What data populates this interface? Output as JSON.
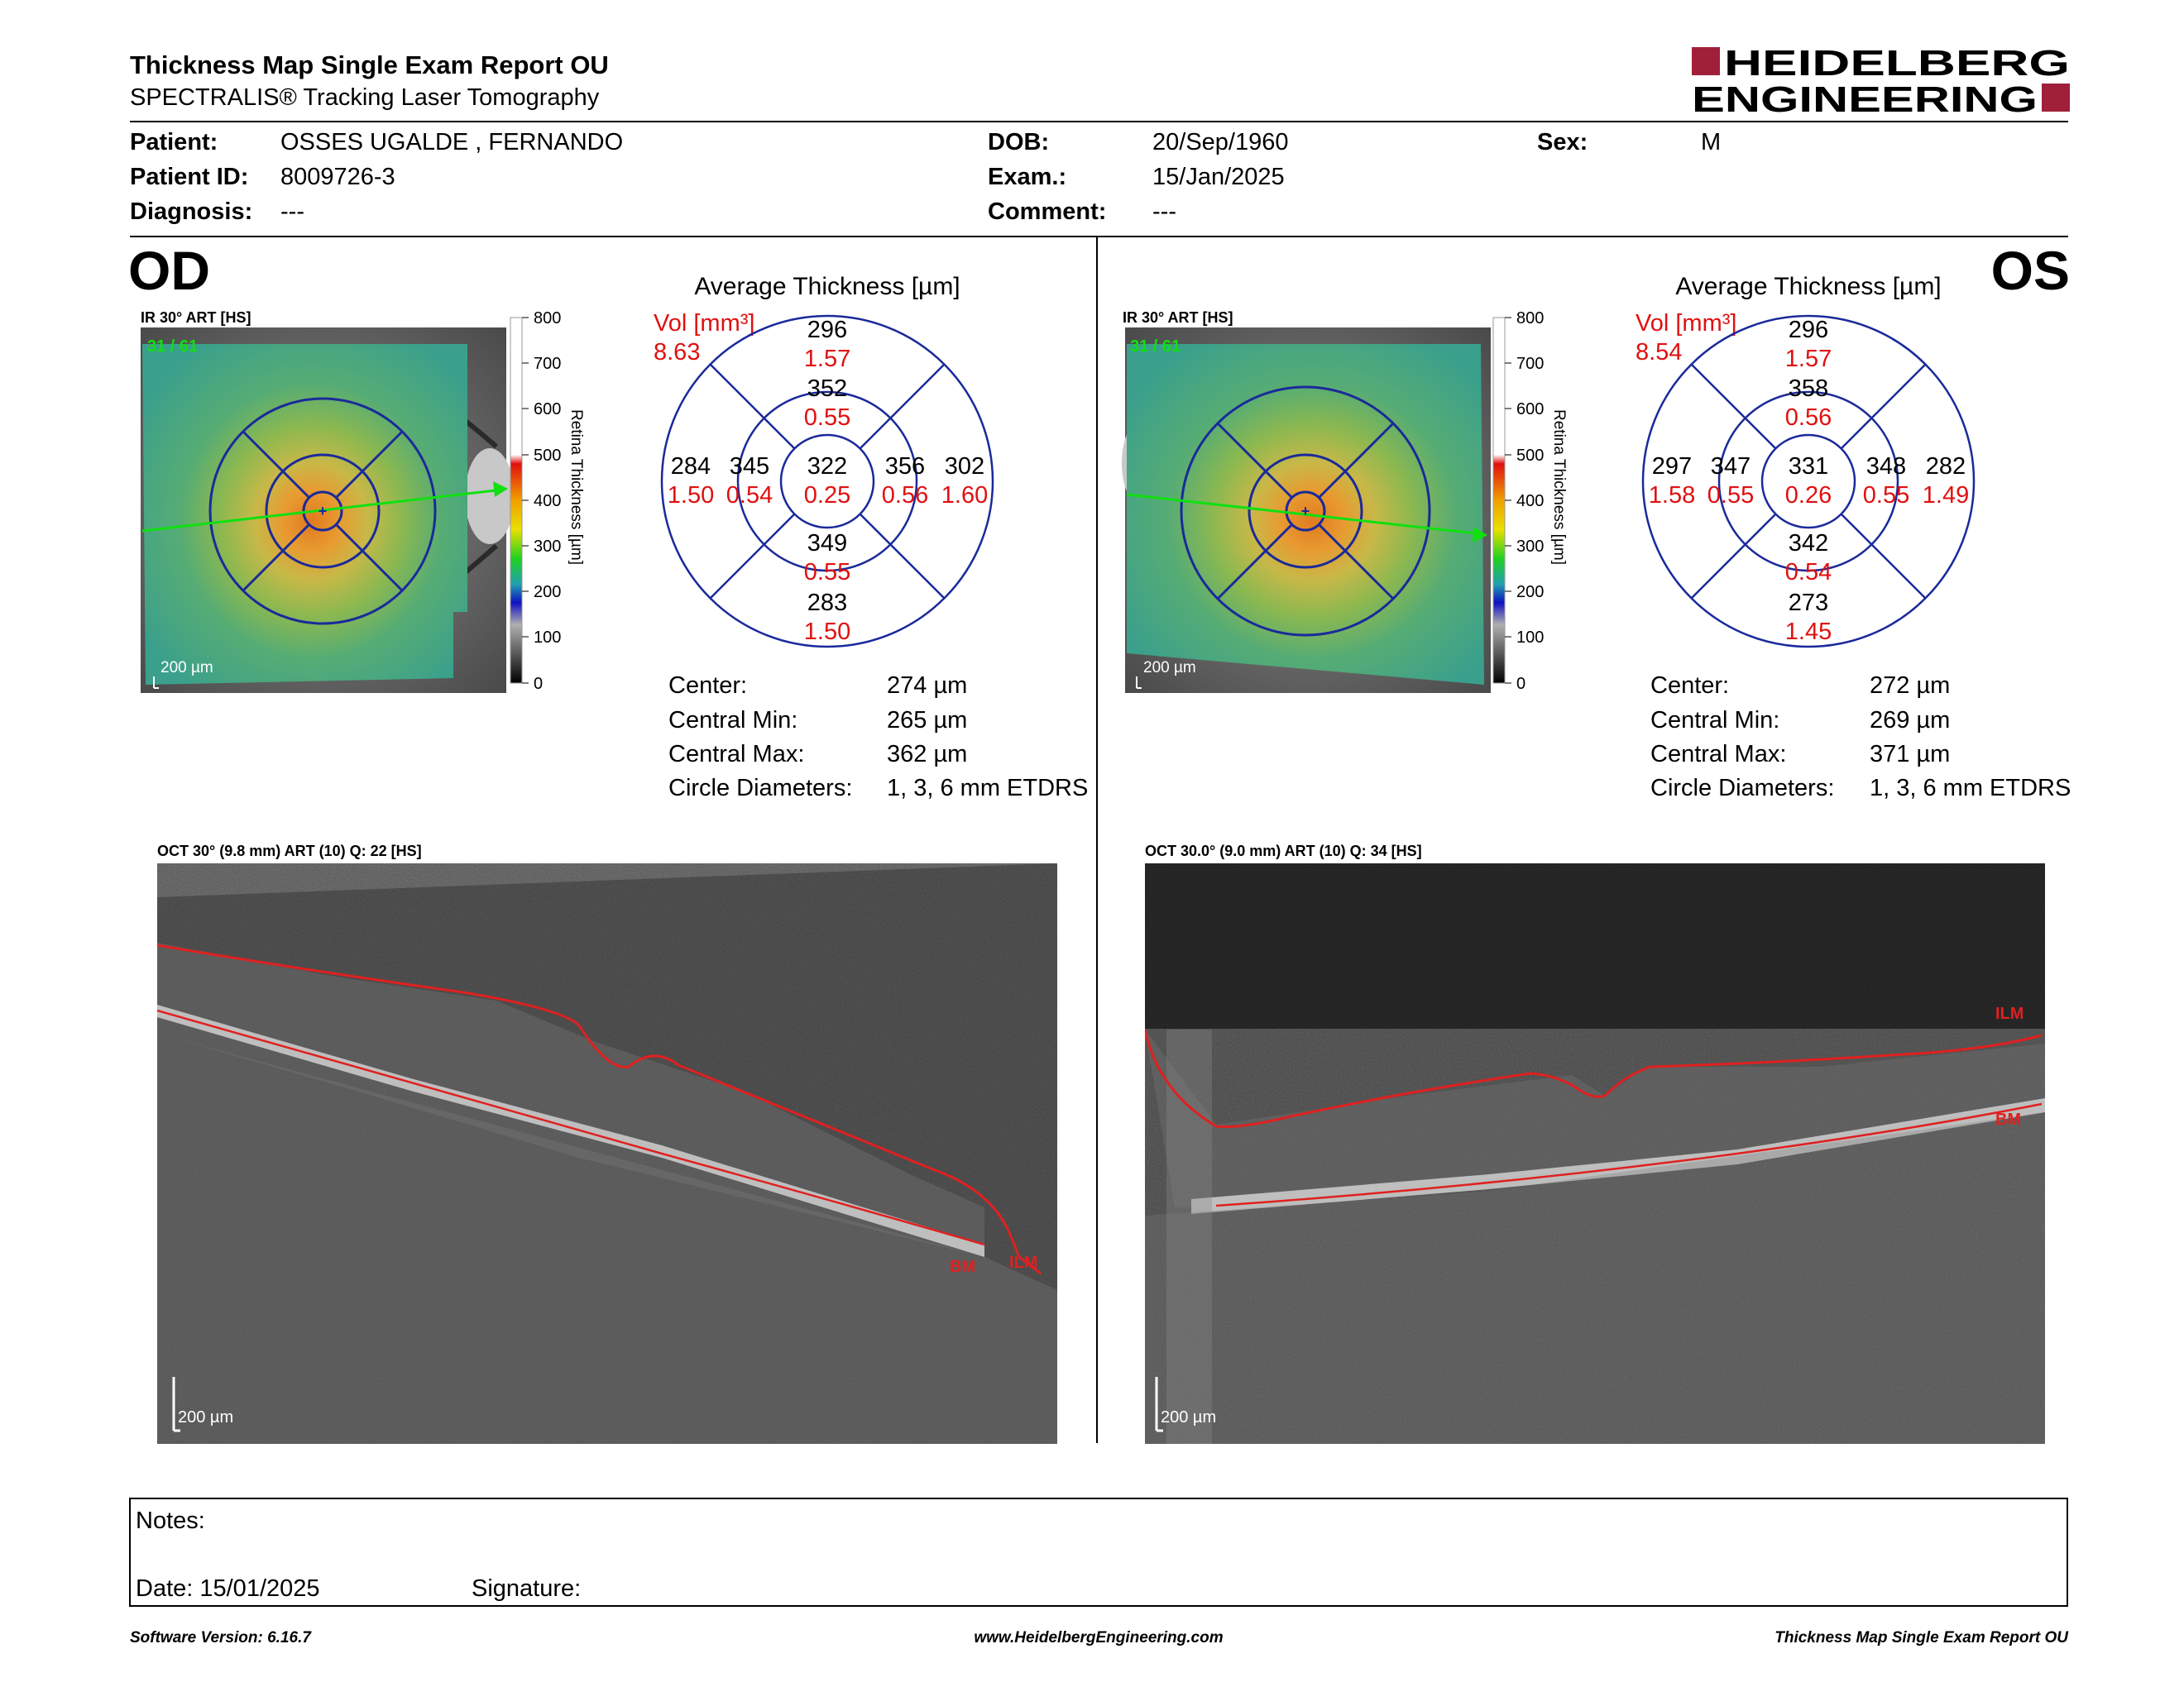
{
  "header": {
    "title": "Thickness Map Single Exam Report OU",
    "subtitle": "SPECTRALIS® Tracking Laser Tomography",
    "logo_line1": "HEIDELBERG",
    "logo_line2": "ENGINEERING"
  },
  "patient": {
    "patient_label": "Patient:",
    "patient_value": "OSSES UGALDE , FERNANDO",
    "id_label": "Patient ID:",
    "id_value": "8009726-3",
    "diagnosis_label": "Diagnosis:",
    "diagnosis_value": "---",
    "dob_label": "DOB:",
    "dob_value": "20/Sep/1960",
    "exam_label": "Exam.:",
    "exam_value": "15/Jan/2025",
    "comment_label": "Comment:",
    "comment_value": "---",
    "sex_label": "Sex:",
    "sex_value": "M"
  },
  "colorbar": {
    "ticks": [
      "800",
      "700",
      "600",
      "500",
      "400",
      "300",
      "200",
      "100",
      "0"
    ],
    "axis_label": "Retina Thickness [µm]"
  },
  "od": {
    "eye": "OD",
    "fundus_label": "IR 30° ART [HS]",
    "slice": "31 / 61",
    "scale": "200 µm",
    "avg_title": "Average Thickness [µm]",
    "vol_label": "Vol [mm³]",
    "vol_value": "8.63",
    "grid": {
      "outer_sup_t": "296",
      "outer_sup_v": "1.57",
      "inner_sup_t": "352",
      "inner_sup_v": "0.55",
      "outer_left_t": "284",
      "outer_left_v": "1.50",
      "inner_left_t": "345",
      "inner_left_v": "0.54",
      "center_t": "322",
      "center_v": "0.25",
      "inner_right_t": "356",
      "inner_right_v": "0.56",
      "outer_right_t": "302",
      "outer_right_v": "1.60",
      "inner_inf_t": "349",
      "inner_inf_v": "0.55",
      "outer_inf_t": "283",
      "outer_inf_v": "1.50"
    },
    "stats": {
      "center_label": "Center:",
      "center_value": "274 µm",
      "min_label": "Central Min:",
      "min_value": "265 µm",
      "max_label": "Central Max:",
      "max_value": "362 µm",
      "diam_label": "Circle Diameters:",
      "diam_value": "1, 3, 6 mm ETDRS"
    },
    "oct_label": "OCT 30° (9.8 mm) ART (10) Q: 22 [HS]",
    "oct_scale": "200 µm",
    "ilm": "ILM",
    "bm": "BM"
  },
  "os": {
    "eye": "OS",
    "fundus_label": "IR 30° ART [HS]",
    "slice": "31 / 61",
    "scale": "200 µm",
    "avg_title": "Average Thickness [µm]",
    "vol_label": "Vol [mm³]",
    "vol_value": "8.54",
    "grid": {
      "outer_sup_t": "296",
      "outer_sup_v": "1.57",
      "inner_sup_t": "358",
      "inner_sup_v": "0.56",
      "outer_left_t": "297",
      "outer_left_v": "1.58",
      "inner_left_t": "347",
      "inner_left_v": "0.55",
      "center_t": "331",
      "center_v": "0.26",
      "inner_right_t": "348",
      "inner_right_v": "0.55",
      "outer_right_t": "282",
      "outer_right_v": "1.49",
      "inner_inf_t": "342",
      "inner_inf_v": "0.54",
      "outer_inf_t": "273",
      "outer_inf_v": "1.45"
    },
    "stats": {
      "center_label": "Center:",
      "center_value": "272 µm",
      "min_label": "Central Min:",
      "min_value": "269 µm",
      "max_label": "Central Max:",
      "max_value": "371 µm",
      "diam_label": "Circle Diameters:",
      "diam_value": "1, 3, 6 mm ETDRS"
    },
    "oct_label": "OCT 30.0° (9.0 mm) ART (10) Q: 34 [HS]",
    "oct_scale": "200 µm",
    "ilm": "ILM",
    "bm": "BM"
  },
  "notes": {
    "notes_label": "Notes:",
    "date_label": "Date: 15/01/2025",
    "signature_label": "Signature:"
  },
  "footer": {
    "software": "Software Version: 6.16.7",
    "website": "www.HeidelbergEngineering.com",
    "report": "Thickness Map Single Exam Report OU"
  },
  "colors": {
    "accent_red": "#a0203a",
    "grid_blue": "#1a2a9a",
    "volume_red": "#e01010",
    "segmentation_red": "#e02020",
    "scan_green": "#10e010"
  }
}
